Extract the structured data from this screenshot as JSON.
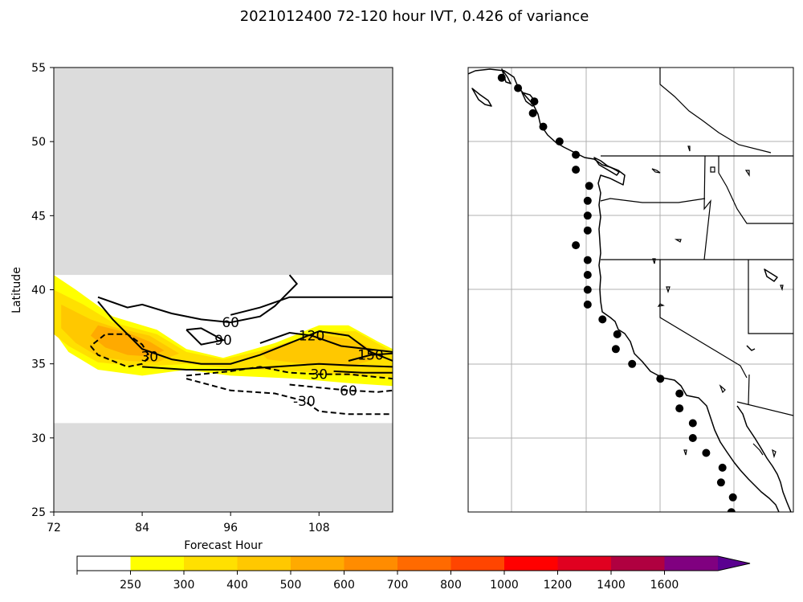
{
  "figure_title": "2021012400 72-120 hour IVT, 0.426 of variance",
  "chart_data": [
    {
      "type": "contour",
      "name": "hovmoller",
      "xlabel": "Forecast Hour",
      "ylabel": "Latitude",
      "xlim": [
        72,
        118
      ],
      "ylim": [
        25,
        55
      ],
      "xticks": [
        72,
        84,
        96,
        108
      ],
      "yticks": [
        25,
        30,
        35,
        40,
        45,
        50,
        55
      ],
      "masked_regions": [
        [
          25,
          31
        ],
        [
          41,
          55
        ]
      ],
      "filled_layers": [
        {
          "level": 250,
          "color": "#ffff00",
          "polygon": [
            [
              72,
              41
            ],
            [
              75,
              40
            ],
            [
              80,
              38.2
            ],
            [
              86,
              37.3
            ],
            [
              90,
              36
            ],
            [
              95,
              35.4
            ],
            [
              102,
              36.4
            ],
            [
              108,
              37.6
            ],
            [
              112,
              37.6
            ],
            [
              116,
              36.5
            ],
            [
              118,
              36
            ],
            [
              118,
              33.5
            ],
            [
              112,
              33.7
            ],
            [
              105,
              34
            ],
            [
              96,
              34.2
            ],
            [
              90,
              34.6
            ],
            [
              84,
              34.2
            ],
            [
              78,
              34.6
            ],
            [
              74,
              35.8
            ],
            [
              72,
              37.2
            ]
          ]
        },
        {
          "level": 300,
          "color": "#ffe000",
          "polygon": [
            [
              72,
              40
            ],
            [
              76,
              39
            ],
            [
              80,
              37.8
            ],
            [
              86,
              37
            ],
            [
              90,
              35.8
            ],
            [
              95,
              35.3
            ],
            [
              102,
              36.1
            ],
            [
              108,
              37.2
            ],
            [
              113,
              37.2
            ],
            [
              118,
              35.8
            ],
            [
              118,
              34.1
            ],
            [
              112,
              34.2
            ],
            [
              105,
              34.5
            ],
            [
              96,
              34.7
            ],
            [
              90,
              35
            ],
            [
              84,
              34.8
            ],
            [
              78,
              35.1
            ],
            [
              74,
              36.2
            ],
            [
              72,
              37
            ]
          ]
        },
        {
          "level": 400,
          "color": "#ffc800",
          "polygon": [
            [
              73,
              39
            ],
            [
              77,
              38
            ],
            [
              80,
              37.5
            ],
            [
              85,
              36.9
            ],
            [
              89,
              35.7
            ],
            [
              86,
              35.1
            ],
            [
              82,
              35.2
            ],
            [
              78,
              35.5
            ],
            [
              75,
              36.4
            ],
            [
              73,
              37.4
            ]
          ]
        },
        {
          "level": 400,
          "color": "#ffc800",
          "polygon": [
            [
              100,
              35.8
            ],
            [
              104,
              36.5
            ],
            [
              108,
              37
            ],
            [
              113,
              36.6
            ],
            [
              117,
              35.5
            ],
            [
              112,
              34.8
            ],
            [
              106,
              35
            ],
            [
              101,
              35.3
            ]
          ]
        },
        {
          "level": 500,
          "color": "#ffaa00",
          "polygon": [
            [
              78,
              37.6
            ],
            [
              82,
              37.1
            ],
            [
              85,
              36.5
            ],
            [
              87,
              35.9
            ],
            [
              85,
              35.5
            ],
            [
              82,
              35.6
            ],
            [
              79,
              36.1
            ],
            [
              77,
              36.9
            ]
          ]
        }
      ],
      "contours": [
        {
          "label": "60",
          "style": "solid",
          "path": [
            [
              78,
              39.5
            ],
            [
              82,
              38.8
            ],
            [
              84,
              39
            ],
            [
              88,
              38.4
            ],
            [
              92,
              38
            ],
            [
              96,
              37.8
            ],
            [
              100,
              38.2
            ],
            [
              102,
              38.9
            ],
            [
              105,
              40.4
            ],
            [
              104,
              41
            ]
          ]
        },
        {
          "label": "",
          "style": "solid",
          "path": [
            [
              78,
              39.2
            ],
            [
              80,
              38
            ],
            [
              84,
              36
            ],
            [
              88,
              35.3
            ],
            [
              92,
              35
            ],
            [
              96,
              35
            ],
            [
              100,
              35.6
            ],
            [
              104,
              36.4
            ],
            [
              108,
              37.2
            ],
            [
              112,
              36.9
            ],
            [
              115,
              35.8
            ],
            [
              118,
              35.2
            ]
          ]
        },
        {
          "label": "90",
          "style": "solid",
          "path": [
            [
              90,
              37.3
            ],
            [
              92,
              37.4
            ],
            [
              95,
              36.6
            ],
            [
              92,
              36.3
            ],
            [
              90,
              37.3
            ]
          ]
        },
        {
          "label": "120",
          "style": "solid",
          "path": [
            [
              100,
              36.4
            ],
            [
              104,
              37.1
            ],
            [
              107,
              36.9
            ],
            [
              111,
              36.2
            ],
            [
              118,
              35.8
            ]
          ]
        },
        {
          "label": "150",
          "style": "solid",
          "path": [
            [
              112,
              35.2
            ],
            [
              115,
              35.6
            ],
            [
              118,
              35.7
            ]
          ]
        },
        {
          "label": "",
          "style": "solid",
          "path": [
            [
              96,
              38.3
            ],
            [
              100,
              38.8
            ],
            [
              104,
              39.5
            ],
            [
              118,
              39.5
            ]
          ]
        },
        {
          "label": "",
          "style": "solid",
          "path": [
            [
              84,
              34.8
            ],
            [
              90,
              34.6
            ],
            [
              96,
              34.6
            ],
            [
              102,
              34.8
            ],
            [
              108,
              35
            ],
            [
              112,
              34.9
            ],
            [
              118,
              34.8
            ]
          ]
        },
        {
          "label": "",
          "style": "solid",
          "path": [
            [
              110,
              34.5
            ],
            [
              114,
              34.4
            ],
            [
              118,
              34.4
            ]
          ]
        },
        {
          "label": "30",
          "style": "dashed",
          "path": [
            [
              77,
              36.2
            ],
            [
              78,
              35.6
            ],
            [
              82,
              34.8
            ],
            [
              84,
              35
            ],
            [
              85,
              35.5
            ],
            [
              84,
              36.3
            ],
            [
              82,
              37
            ],
            [
              79,
              37
            ],
            [
              77,
              36.2
            ]
          ]
        },
        {
          "label": "30",
          "style": "dashed",
          "path": [
            [
              90,
              34.2
            ],
            [
              96,
              34.5
            ],
            [
              100,
              34.8
            ],
            [
              104,
              34.4
            ],
            [
              108,
              34.3
            ],
            [
              112,
              34.3
            ],
            [
              116,
              34.1
            ],
            [
              118,
              34
            ]
          ]
        },
        {
          "label": "60",
          "style": "dashed",
          "path": [
            [
              104,
              33.6
            ],
            [
              108,
              33.4
            ],
            [
              112,
              33.2
            ],
            [
              116,
              33.1
            ],
            [
              118,
              33.2
            ]
          ]
        },
        {
          "label": "-30",
          "style": "dashed",
          "path": [
            [
              90,
              34
            ],
            [
              96,
              33.2
            ],
            [
              102,
              33
            ],
            [
              106,
              32.5
            ],
            [
              108,
              31.8
            ],
            [
              112,
              31.6
            ],
            [
              118,
              31.6
            ]
          ]
        }
      ]
    },
    {
      "type": "map",
      "name": "west-coast-points",
      "points_lonlat": [
        [
          -130.7,
          54.3
        ],
        [
          -129.6,
          53.6
        ],
        [
          -128.5,
          52.7
        ],
        [
          -128.6,
          51.9
        ],
        [
          -127.9,
          51
        ],
        [
          -126.8,
          50
        ],
        [
          -125.7,
          49.1
        ],
        [
          -125.7,
          48.1
        ],
        [
          -124.8,
          47
        ],
        [
          -124.9,
          46
        ],
        [
          -124.9,
          45
        ],
        [
          -124.9,
          44
        ],
        [
          -125.7,
          43
        ],
        [
          -124.9,
          42
        ],
        [
          -124.9,
          41
        ],
        [
          -124.9,
          40
        ],
        [
          -124.9,
          39
        ],
        [
          -123.9,
          38
        ],
        [
          -122.9,
          37
        ],
        [
          -123,
          36
        ],
        [
          -121.9,
          35
        ],
        [
          -120,
          34
        ],
        [
          -118.7,
          33
        ],
        [
          -118.7,
          32
        ],
        [
          -117.8,
          31
        ],
        [
          -117.8,
          30
        ],
        [
          -116.9,
          29
        ],
        [
          -115.8,
          28
        ],
        [
          -115.9,
          27
        ],
        [
          -115.1,
          26
        ],
        [
          -115.2,
          25
        ]
      ]
    }
  ],
  "colorbar": {
    "levels": [
      250,
      300,
      400,
      500,
      600,
      700,
      800,
      1000,
      1200,
      1400,
      1600
    ],
    "colors": [
      "#ffffff",
      "#ffff00",
      "#ffe000",
      "#ffc800",
      "#ffaa00",
      "#ff8c00",
      "#ff6a00",
      "#ff4500",
      "#ff0000",
      "#e00020",
      "#b00040",
      "#800080",
      "#5a0090"
    ]
  }
}
